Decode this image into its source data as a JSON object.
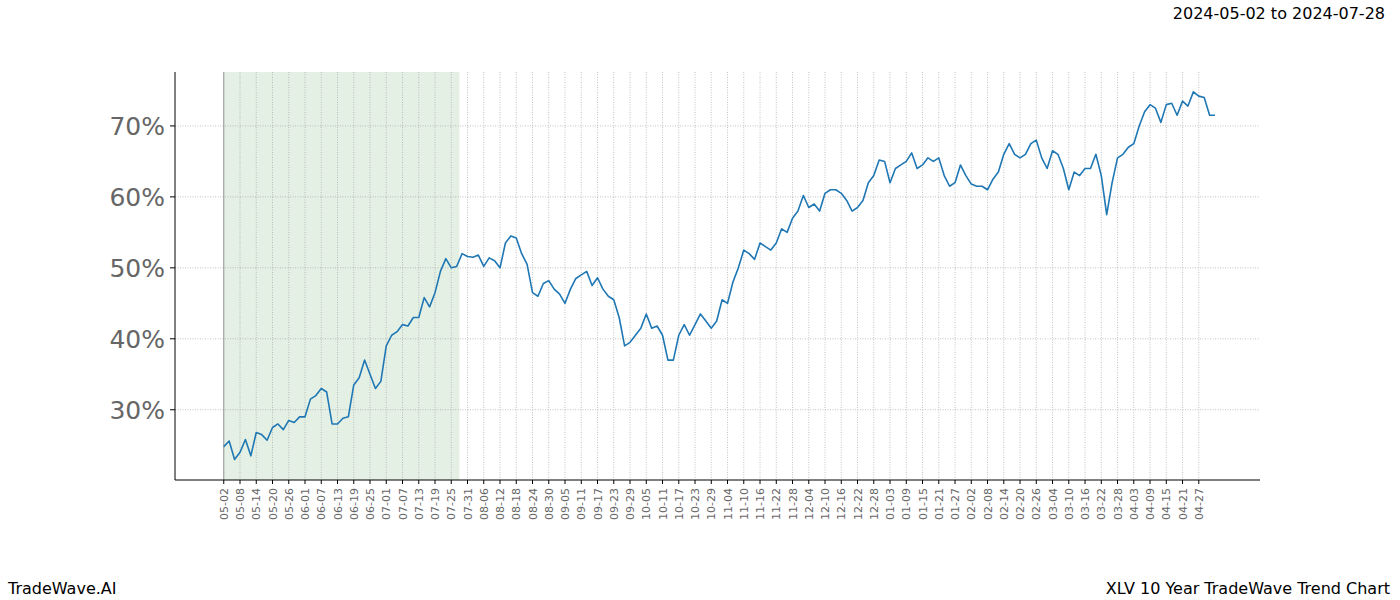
{
  "chart_data": {
    "type": "line",
    "title": "XLV 10 Year TradeWave Trend Chart",
    "subtitle": "2024-05-02 to 2024-07-28",
    "annotations": [
      {
        "text": "TradeWave.AI"
      }
    ],
    "categories": [
      "05-02",
      null,
      null,
      "05-08",
      null,
      null,
      "05-14",
      null,
      null,
      "05-20",
      null,
      null,
      "05-26",
      null,
      null,
      "06-01",
      null,
      null,
      "06-07",
      null,
      null,
      "06-13",
      null,
      null,
      "06-19",
      null,
      null,
      "06-25",
      null,
      null,
      "07-01",
      null,
      null,
      "07-07",
      null,
      null,
      "07-13",
      null,
      null,
      "07-19",
      null,
      null,
      "07-25",
      null,
      null,
      "07-31",
      null,
      null,
      "08-06",
      null,
      null,
      "08-12",
      null,
      null,
      "08-18",
      null,
      null,
      "08-24",
      null,
      null,
      "08-30",
      null,
      null,
      "09-05",
      null,
      null,
      "09-11",
      null,
      null,
      "09-17",
      null,
      null,
      "09-23",
      null,
      null,
      "09-29",
      null,
      null,
      "10-05",
      null,
      null,
      "10-11",
      null,
      null,
      "10-17",
      null,
      null,
      "10-23",
      null,
      null,
      "10-29",
      null,
      null,
      "11-04",
      null,
      null,
      "11-10",
      null,
      null,
      "11-16",
      null,
      null,
      "11-22",
      null,
      null,
      "11-28",
      null,
      null,
      "12-04",
      null,
      null,
      "12-10",
      null,
      null,
      "12-16",
      null,
      null,
      "12-22",
      null,
      null,
      "12-28",
      null,
      null,
      "01-03",
      null,
      null,
      "01-09",
      null,
      null,
      "01-15",
      null,
      null,
      "01-21",
      null,
      null,
      "01-27",
      null,
      null,
      "02-02",
      null,
      null,
      "02-08",
      null,
      null,
      "02-14",
      null,
      null,
      "02-20",
      null,
      null,
      "02-26",
      null,
      null,
      "03-04",
      null,
      null,
      "03-10",
      null,
      null,
      "03-16",
      null,
      null,
      "03-22",
      null,
      null,
      "03-28",
      null,
      null,
      "04-03",
      null,
      null,
      "04-09",
      null,
      null,
      "04-15",
      null,
      null,
      "04-21",
      null,
      null,
      "04-27",
      null,
      null,
      null
    ],
    "values": [
      24.8,
      25.6,
      23.0,
      24.0,
      25.8,
      23.5,
      26.8,
      26.5,
      25.7,
      27.5,
      28.0,
      27.2,
      28.5,
      28.2,
      29.0,
      29.0,
      31.5,
      32.0,
      33.0,
      32.5,
      28.0,
      28.0,
      28.8,
      29.0,
      33.5,
      34.5,
      37.0,
      35.0,
      33.0,
      34.0,
      39.0,
      40.5,
      41.0,
      42.0,
      41.8,
      43.0,
      43.0,
      45.8,
      44.5,
      46.5,
      49.5,
      51.3,
      50.0,
      50.2,
      52.0,
      51.6,
      51.5,
      51.8,
      50.2,
      51.4,
      51.0,
      50.0,
      53.5,
      54.5,
      54.2,
      52.0,
      50.5,
      46.5,
      46.0,
      47.8,
      48.2,
      47.0,
      46.3,
      45.0,
      47.0,
      48.5,
      49.0,
      49.5,
      47.5,
      48.6,
      47.0,
      46.0,
      45.5,
      43.0,
      39.0,
      39.5,
      40.5,
      41.5,
      43.5,
      41.5,
      41.8,
      40.5,
      37.0,
      37.0,
      40.5,
      42.0,
      40.5,
      42.0,
      43.5,
      42.5,
      41.5,
      42.5,
      45.5,
      45.0,
      48.0,
      50.0,
      52.5,
      52.0,
      51.2,
      53.5,
      53.0,
      52.5,
      53.5,
      55.5,
      55.0,
      57.0,
      58.0,
      60.2,
      58.5,
      59.0,
      58.0,
      60.5,
      61.0,
      61.0,
      60.5,
      59.5,
      58.0,
      58.5,
      59.5,
      62.0,
      63.0,
      65.2,
      65.0,
      62.0,
      64.0,
      64.5,
      65.0,
      66.2,
      64.0,
      64.5,
      65.5,
      65.0,
      65.5,
      63.0,
      61.5,
      62.0,
      64.5,
      63.0,
      61.8,
      61.5,
      61.5,
      61.0,
      62.5,
      63.5,
      66.0,
      67.5,
      66.0,
      65.5,
      66.0,
      67.5,
      68.0,
      65.5,
      64.0,
      66.5,
      66.0,
      64.0,
      61.0,
      63.5,
      63.0,
      64.0,
      64.0,
      66.0,
      63.0,
      57.5,
      62.0,
      65.5,
      66.0,
      67.0,
      67.5,
      70.0,
      72.0,
      73.0,
      72.5,
      70.5,
      73.0,
      73.2,
      71.5,
      73.5,
      72.8,
      74.8,
      74.2,
      74.0,
      71.5,
      71.5
    ],
    "color": "#1f77b4",
    "highlight": {
      "start": "05-02",
      "end": "07-28",
      "color": "#e5f0e5"
    },
    "xlim": [
      -9.0,
      191.3
    ],
    "ylim": [
      20.1,
      77.6
    ],
    "yticks": [
      {
        "value": 30,
        "label": "30%"
      },
      {
        "value": 40,
        "label": "40%"
      },
      {
        "value": 50,
        "label": "50%"
      },
      {
        "value": 60,
        "label": "60%"
      },
      {
        "value": 70,
        "label": "70%"
      }
    ],
    "grid": true
  }
}
